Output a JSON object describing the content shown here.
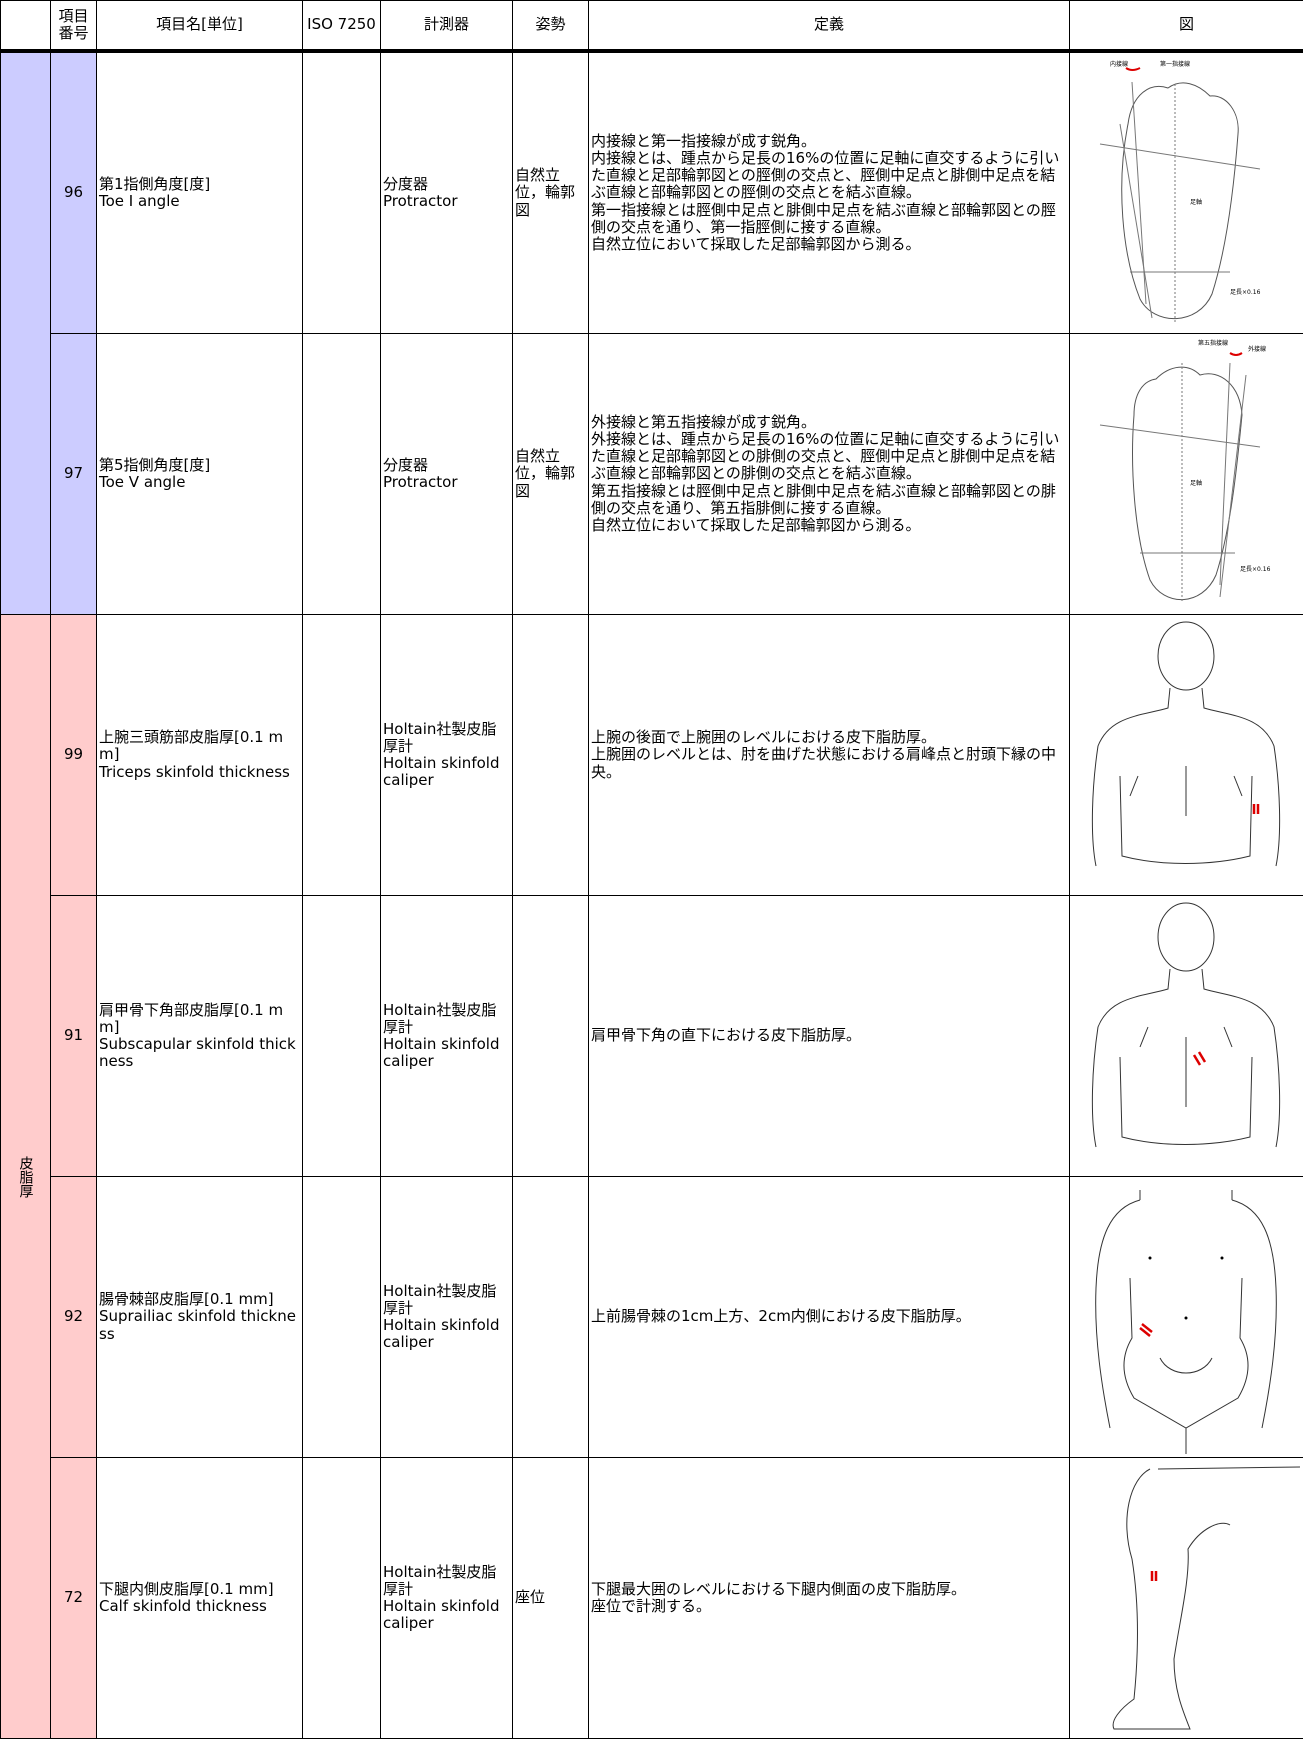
{
  "header": {
    "columns": [
      "項目番号",
      "項目名[単位]",
      "ISO 7250",
      "計測器",
      "姿勢",
      "定義",
      "図"
    ]
  },
  "groups": [
    {
      "label": null,
      "rows": [
        {
          "number": "96",
          "name": "第1指側角度[度]",
          "name_en": "Toe I angle",
          "iso": null,
          "instrument": "分度器",
          "instrument_en": "Protractor",
          "posture": "自然立位，輪郭図",
          "definition": [
            "内接線と第一指接線が成す鋭角。",
            "内接線とは、踵点から足長の16%の位置に足軸に直交するように引いた直線と足部輪郭図との脛側の交点と、脛側中足点と腓側中足点を結ぶ直線と部輪郭図との脛側の交点とを結ぶ直線。",
            "第一指接線とは脛側中足点と腓側中足点を結ぶ直線と部輪郭図との脛側の交点を通り、第一指脛側に接する直線。",
            "自然立位において採取した足部輪郭図から測る。"
          ],
          "figure_labels": [
            "内接線",
            "第一指接線",
            "足軸",
            "足長×0.16"
          ]
        },
        {
          "number": "97",
          "name": "第5指側角度[度]",
          "name_en": "Toe V angle",
          "iso": null,
          "instrument": "分度器",
          "instrument_en": "Protractor",
          "posture": "自然立位，輪郭図",
          "definition": [
            "外接線と第五指接線が成す鋭角。",
            "外接線とは、踵点から足長の16%の位置に足軸に直交するように引いた直線と足部輪郭図との腓側の交点と、脛側中足点と腓側中足点を結ぶ直線と部輪郭図との腓側の交点とを結ぶ直線。",
            "第五指接線とは脛側中足点と腓側中足点を結ぶ直線と部輪郭図との腓側の交点を通り、第五指腓側に接する直線。",
            "自然立位において採取した足部輪郭図から測る。"
          ],
          "figure_labels": [
            "第五指接線",
            "外接線",
            "足軸",
            "足長×0.16"
          ]
        }
      ]
    },
    {
      "label": "皮脂厚",
      "rows": [
        {
          "number": "99",
          "name": "上腕三頭筋部皮脂厚[0.1 mm]",
          "name_en": "Triceps skinfold thickness",
          "iso": null,
          "instrument": "Holtain社製皮脂厚計",
          "instrument_en": "Holtain skinfold caliper",
          "posture": null,
          "definition": [
            "上腕の後面で上腕囲のレベルにおける皮下脂肪厚。",
            "上腕囲のレベルとは、肘を曲げた状態における肩峰点と肘頭下縁の中央。"
          ],
          "figure_labels": []
        },
        {
          "number": "91",
          "name": "肩甲骨下角部皮脂厚[0.1 mm]",
          "name_en": "Subscapular skinfold thickness",
          "iso": null,
          "instrument": "Holtain社製皮脂厚計",
          "instrument_en": "Holtain skinfold caliper",
          "posture": null,
          "definition": [
            "肩甲骨下角の直下における皮下脂肪厚。"
          ],
          "figure_labels": []
        },
        {
          "number": "92",
          "name": "腸骨棘部皮脂厚[0.1 mm]",
          "name_en": "Suprailiac skinfold thickness",
          "iso": null,
          "instrument": "Holtain社製皮脂厚計",
          "instrument_en": "Holtain skinfold caliper",
          "posture": null,
          "definition": [
            "上前腸骨棘の1cm上方、2cm内側における皮下脂肪厚。"
          ],
          "figure_labels": []
        },
        {
          "number": "72",
          "name": "下腿内側皮脂厚[0.1 mm]",
          "name_en": "Calf skinfold thickness",
          "iso": null,
          "instrument": "Holtain社製皮脂厚計",
          "instrument_en": "Holtain skinfold caliper",
          "posture": "座位",
          "definition": [
            "下腿最大囲のレベルにおける下腿内側面の皮下脂肪厚。",
            "座位で計測する。"
          ],
          "figure_labels": []
        }
      ]
    }
  ]
}
